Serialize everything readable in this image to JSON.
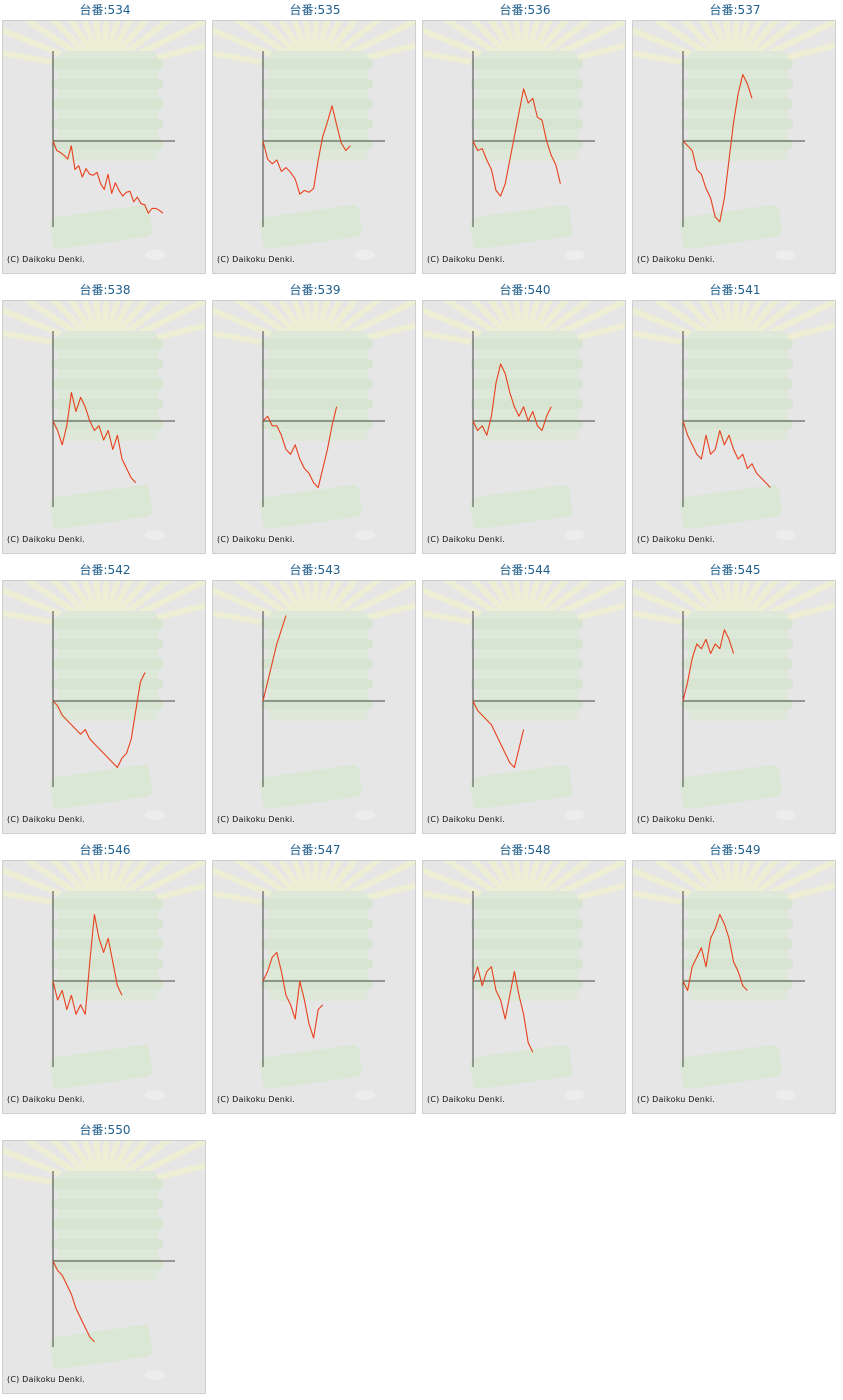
{
  "page": {
    "label_prefix": "台番:",
    "copyright": "(C) Daikoku Denki."
  },
  "colors": {
    "line": "#e8401c",
    "axis": "#444444",
    "label": "#1f5e8c",
    "background": "#e6e6e6"
  },
  "chart_data": [
    {
      "type": "line",
      "label": "台番:534",
      "values": [
        0,
        -10,
        -12,
        -15,
        -19,
        -5,
        -30,
        -26,
        -38,
        -29,
        -35,
        -36,
        -33,
        -45,
        -51,
        -35,
        -55,
        -44,
        -52,
        -58,
        -54,
        -53,
        -64,
        -59,
        -66,
        -67,
        -76,
        -71,
        -71,
        -73,
        -76
      ]
    },
    {
      "type": "line",
      "label": "台番:535",
      "values": [
        0,
        -19,
        -24,
        -20,
        -32,
        -28,
        -33,
        -40,
        -56,
        -52,
        -54,
        -50,
        -20,
        5,
        20,
        37,
        17,
        -2,
        -10,
        -5
      ]
    },
    {
      "type": "line",
      "label": "台番:536",
      "values": [
        0,
        -10,
        -8,
        -20,
        -30,
        -52,
        -58,
        -45,
        -20,
        5,
        30,
        55,
        40,
        45,
        25,
        22,
        0,
        -15,
        -25,
        -45
      ]
    },
    {
      "type": "line",
      "label": "台番:537",
      "values": [
        0,
        -5,
        -10,
        -30,
        -35,
        -50,
        -60,
        -80,
        -85,
        -60,
        -20,
        20,
        50,
        70,
        60,
        45
      ]
    },
    {
      "type": "line",
      "label": "台番:538",
      "values": [
        0,
        -10,
        -25,
        -5,
        30,
        10,
        25,
        15,
        0,
        -10,
        -5,
        -20,
        -10,
        -30,
        -15,
        -40,
        -50,
        -60,
        -65
      ]
    },
    {
      "type": "line",
      "label": "台番:539",
      "values": [
        0,
        5,
        -5,
        -5,
        -15,
        -30,
        -35,
        -25,
        -40,
        -50,
        -55,
        -65,
        -70,
        -50,
        -30,
        -5,
        15
      ]
    },
    {
      "type": "line",
      "label": "台番:540",
      "values": [
        0,
        -10,
        -5,
        -15,
        5,
        40,
        60,
        50,
        30,
        15,
        5,
        15,
        0,
        10,
        -5,
        -10,
        5,
        15
      ]
    },
    {
      "type": "line",
      "label": "台番:541",
      "values": [
        0,
        -15,
        -25,
        -35,
        -40,
        -15,
        -35,
        -30,
        -10,
        -25,
        -15,
        -30,
        -40,
        -35,
        -50,
        -45,
        -55,
        -60,
        -65,
        -70
      ]
    },
    {
      "type": "line",
      "label": "台番:542",
      "values": [
        0,
        -5,
        -15,
        -20,
        -25,
        -30,
        -35,
        -30,
        -40,
        -45,
        -50,
        -55,
        -60,
        -65,
        -70,
        -60,
        -55,
        -40,
        -10,
        20,
        30
      ]
    },
    {
      "type": "line",
      "label": "台番:543",
      "values": [
        0,
        20,
        40,
        60,
        75,
        90
      ]
    },
    {
      "type": "line",
      "label": "台番:544",
      "values": [
        0,
        -10,
        -15,
        -20,
        -25,
        -35,
        -45,
        -55,
        -65,
        -70,
        -50,
        -30
      ]
    },
    {
      "type": "line",
      "label": "台番:545",
      "values": [
        0,
        20,
        45,
        60,
        55,
        65,
        50,
        60,
        55,
        75,
        65,
        50
      ]
    },
    {
      "type": "line",
      "label": "台番:546",
      "values": [
        0,
        -20,
        -10,
        -30,
        -15,
        -35,
        -25,
        -35,
        20,
        70,
        45,
        30,
        45,
        20,
        -5,
        -15
      ]
    },
    {
      "type": "line",
      "label": "台番:547",
      "values": [
        0,
        10,
        25,
        30,
        10,
        -15,
        -25,
        -40,
        0,
        -20,
        -45,
        -60,
        -30,
        -25
      ]
    },
    {
      "type": "line",
      "label": "台番:548",
      "values": [
        0,
        15,
        -5,
        10,
        15,
        -10,
        -20,
        -40,
        -15,
        10,
        -15,
        -35,
        -65,
        -75
      ]
    },
    {
      "type": "line",
      "label": "台番:549",
      "values": [
        0,
        -10,
        15,
        25,
        35,
        15,
        45,
        55,
        70,
        60,
        45,
        20,
        10,
        -5,
        -10
      ]
    },
    {
      "type": "line",
      "label": "台番:550",
      "values": [
        0,
        -10,
        -15,
        -25,
        -35,
        -50,
        -60,
        -70,
        -80,
        -85
      ]
    }
  ]
}
